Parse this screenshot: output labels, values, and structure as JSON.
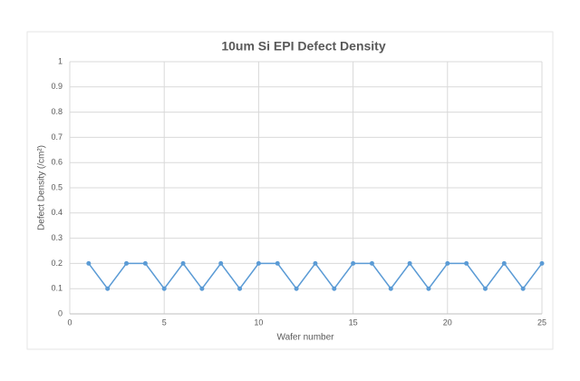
{
  "chart_data": {
    "type": "line",
    "title": "10um Si EPI Defect Density",
    "x_label": "Wafer number",
    "y_label": "Defect Density (/cm²)",
    "x": [
      1,
      2,
      3,
      4,
      5,
      6,
      7,
      8,
      9,
      10,
      11,
      12,
      13,
      14,
      15,
      16,
      17,
      18,
      19,
      20,
      21,
      22,
      23,
      24,
      25
    ],
    "series": [
      {
        "name": "Defect Density",
        "color": "#5b9bd5",
        "values": [
          0.2,
          0.1,
          0.2,
          0.2,
          0.1,
          0.2,
          0.1,
          0.2,
          0.1,
          0.2,
          0.2,
          0.1,
          0.2,
          0.1,
          0.2,
          0.2,
          0.1,
          0.2,
          0.1,
          0.2,
          0.2,
          0.1,
          0.2,
          0.1,
          0.2
        ]
      }
    ],
    "xlim": [
      0,
      25
    ],
    "xticks": [
      0,
      5,
      10,
      15,
      20,
      25
    ],
    "ylim": [
      0,
      1
    ],
    "yticks": [
      0,
      0.1,
      0.2,
      0.3,
      0.4,
      0.5,
      0.6,
      0.7,
      0.8,
      0.9,
      1
    ],
    "grid": true
  }
}
